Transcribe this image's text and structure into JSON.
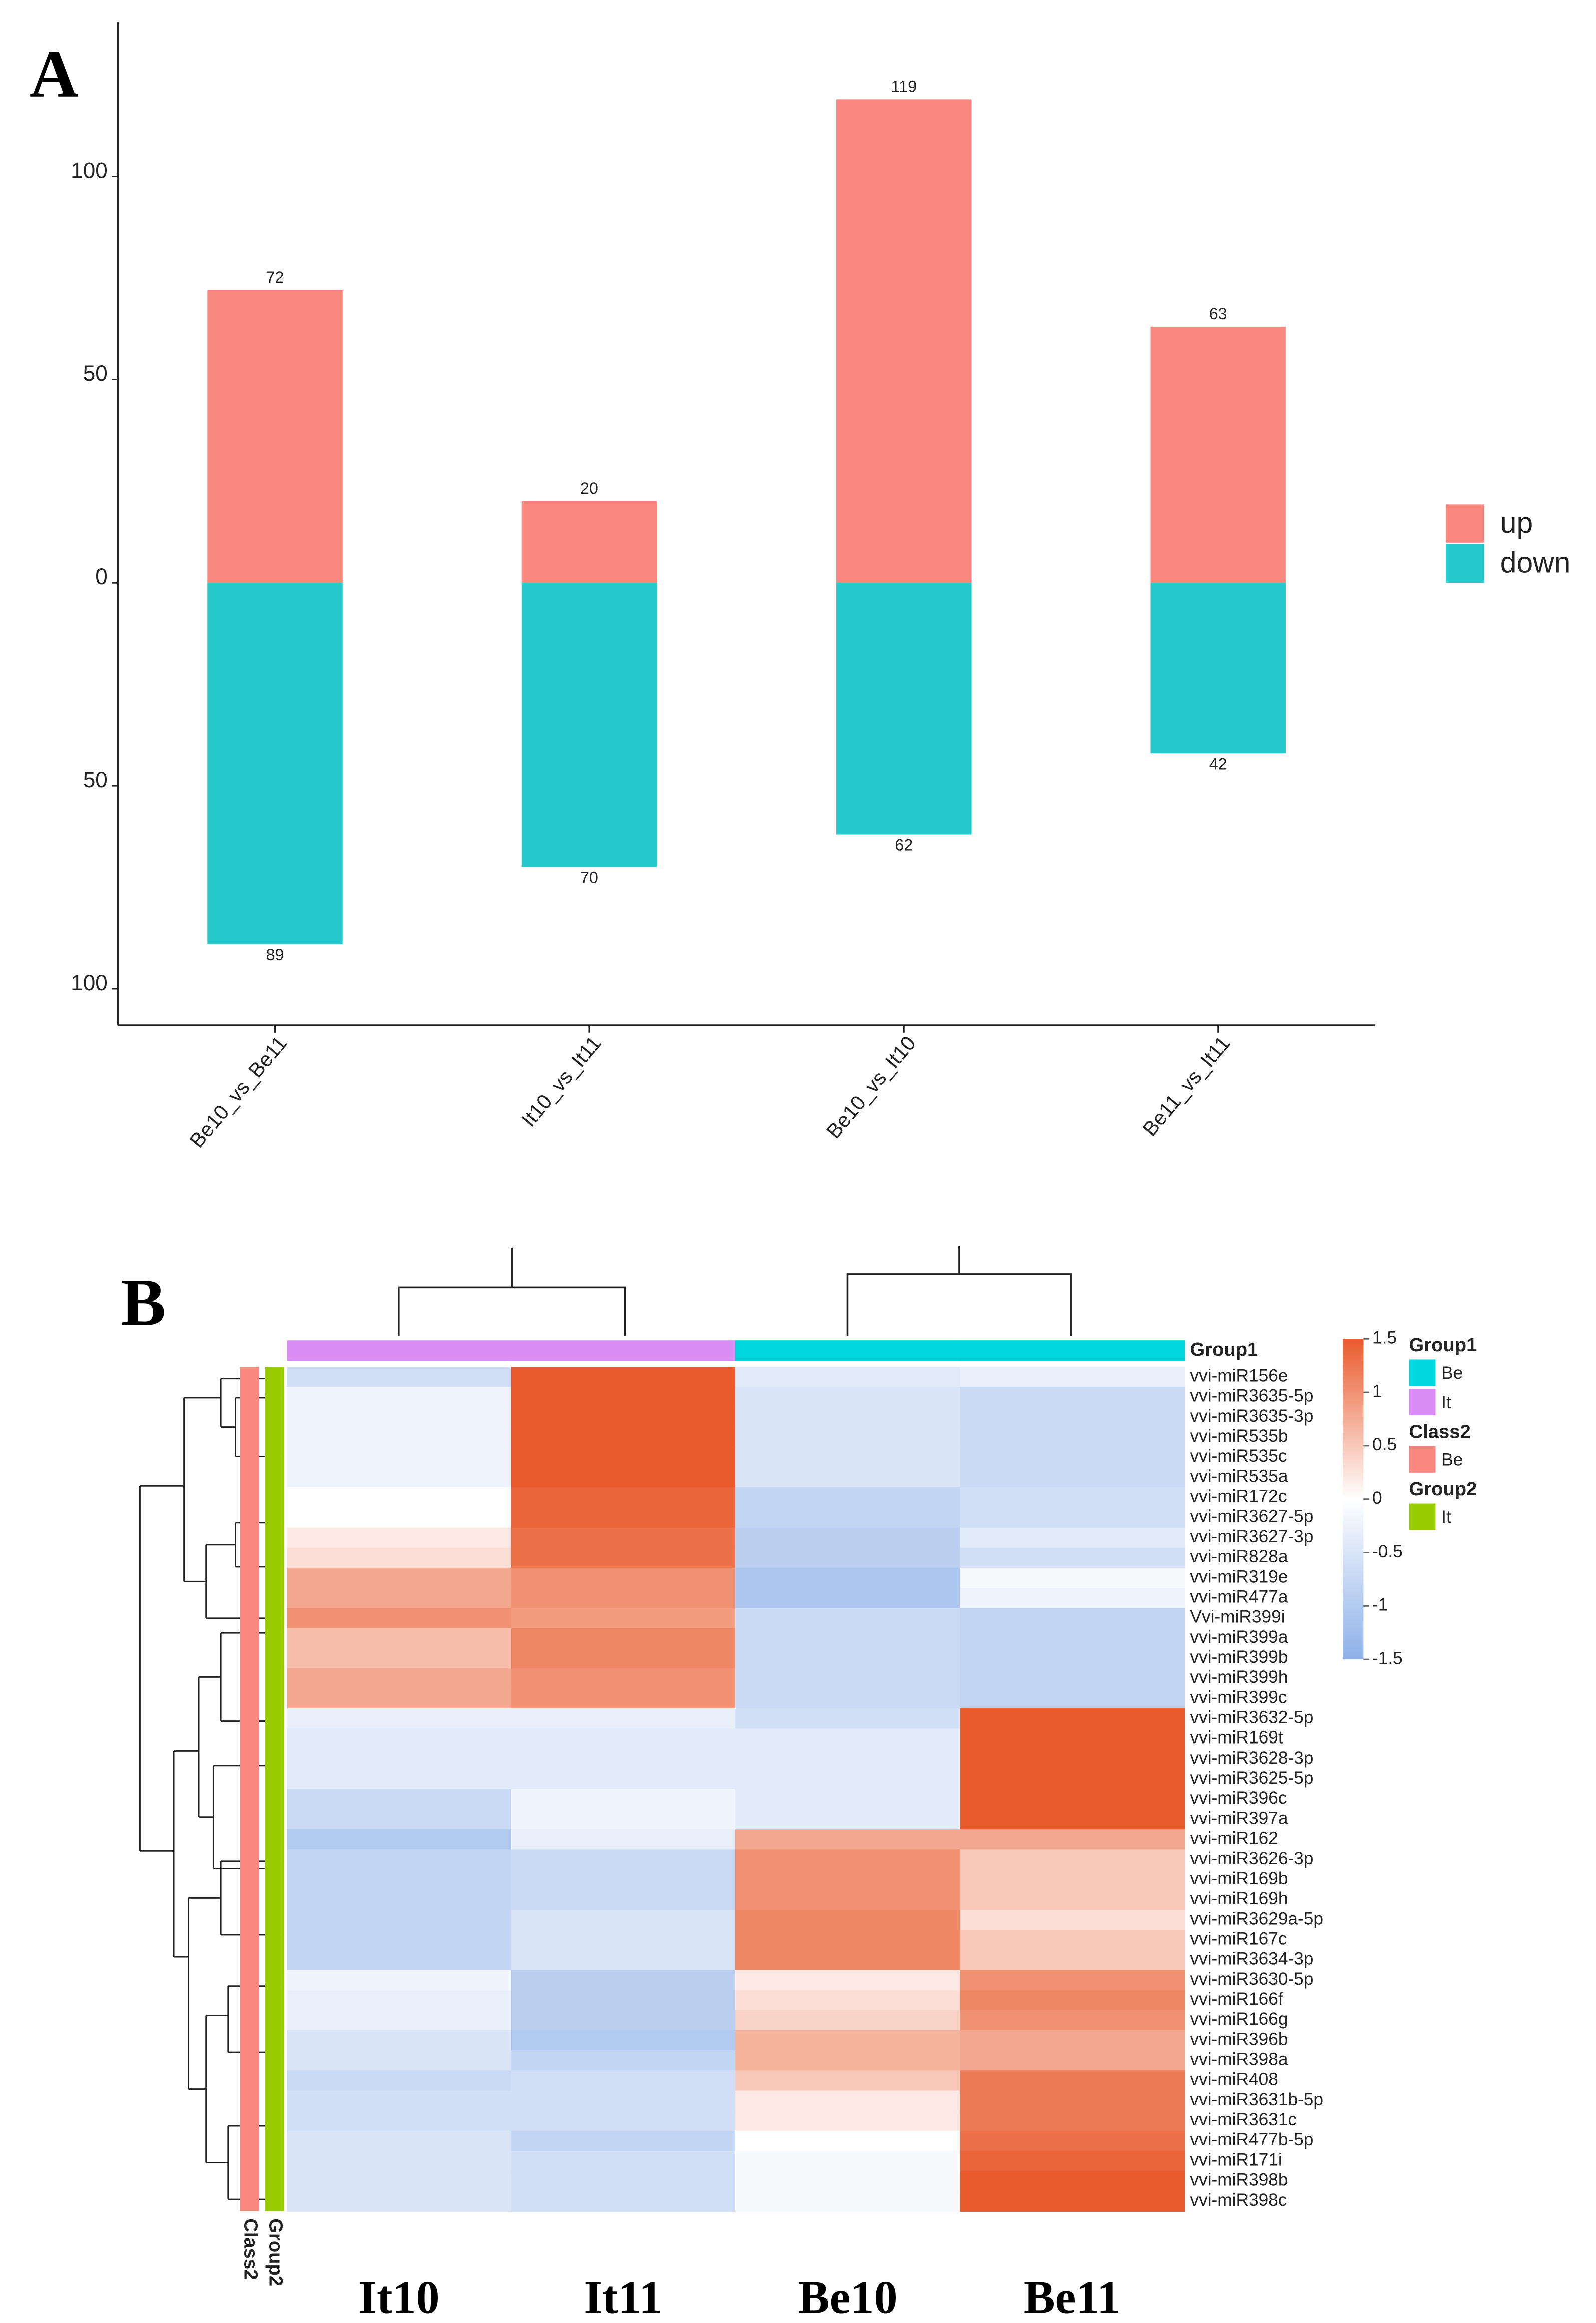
{
  "chart_data": [
    {
      "panel": "A",
      "type": "bar",
      "stacked": true,
      "categories": [
        "Be10_vs_Be11",
        "It10_vs_It11",
        "Be10_vs_It10",
        "Be11_vs_It11"
      ],
      "series": [
        {
          "name": "up",
          "color": "#F8877F",
          "values": [
            72,
            20,
            119,
            63
          ]
        },
        {
          "name": "down",
          "color": "#26C9CC",
          "values": [
            -89,
            -70,
            -62,
            -42
          ],
          "value_labels": [
            "89",
            "70",
            "62",
            "42"
          ]
        }
      ],
      "ylim": [
        -109,
        138
      ],
      "yticks": [
        {
          "value": -100,
          "label": "100"
        },
        {
          "value": -50,
          "label": "50"
        },
        0,
        50,
        100
      ],
      "legend": "right"
    },
    {
      "panel": "B",
      "type": "heatmap",
      "columns": [
        "It10",
        "It11",
        "Be10",
        "Be11"
      ],
      "column_groups": [
        "It",
        "It",
        "Be",
        "Be"
      ],
      "column_annotation": "Group1",
      "rows": [
        "vvi-miR156e",
        "vvi-miR3635-5p",
        "vvi-miR3635-3p",
        "vvi-miR535b",
        "vvi-miR535c",
        "vvi-miR535a",
        "vvi-miR172c",
        "vvi-miR3627-5p",
        "vvi-miR3627-3p",
        "vvi-miR828a",
        "vvi-miR319e",
        "vvi-miR477a",
        "Vvi-miR399i",
        "vvi-miR399a",
        "vvi-miR399b",
        "vvi-miR399h",
        "vvi-miR399c",
        "vvi-miR3632-5p",
        "vvi-miR169t",
        "vvi-miR3628-3p",
        "vvi-miR3625-5p",
        "vvi-miR396c",
        "vvi-miR397a",
        "vvi-miR162",
        "vvi-miR3626-3p",
        "vvi-miR169b",
        "vvi-miR169h",
        "vvi-miR3629a-5p",
        "vvi-miR167c",
        "vvi-miR3634-3p",
        "vvi-miR3630-5p",
        "vvi-miR166f",
        "vvi-miR166g",
        "vvi-miR396b",
        "vvi-miR398a",
        "vvi-miR408",
        "vvi-miR3631b-5p",
        "vvi-miR3631c",
        "vvi-miR477b-5p",
        "vvi-miR171i",
        "vvi-miR398b",
        "vvi-miR398c"
      ],
      "values": [
        [
          -0.6,
          1.5,
          -0.4,
          -0.3
        ],
        [
          -0.2,
          1.5,
          -0.5,
          -0.7
        ],
        [
          -0.2,
          1.5,
          -0.5,
          -0.7
        ],
        [
          -0.2,
          1.5,
          -0.5,
          -0.7
        ],
        [
          -0.2,
          1.5,
          -0.5,
          -0.7
        ],
        [
          -0.2,
          1.5,
          -0.5,
          -0.7
        ],
        [
          0,
          1.4,
          -0.8,
          -0.6
        ],
        [
          0,
          1.4,
          -0.8,
          -0.6
        ],
        [
          0.2,
          1.3,
          -0.9,
          -0.4
        ],
        [
          0.3,
          1.3,
          -0.9,
          -0.6
        ],
        [
          0.8,
          1,
          -1.1,
          -0.1
        ],
        [
          0.8,
          1,
          -1.1,
          -0.2
        ],
        [
          1,
          0.9,
          -0.7,
          -0.8
        ],
        [
          0.6,
          1.1,
          -0.7,
          -0.8
        ],
        [
          0.6,
          1.1,
          -0.7,
          -0.8
        ],
        [
          0.8,
          1,
          -0.7,
          -0.8
        ],
        [
          0.8,
          1,
          -0.7,
          -0.8
        ],
        [
          -0.3,
          -0.3,
          -0.6,
          1.5
        ],
        [
          -0.4,
          -0.4,
          -0.4,
          1.5
        ],
        [
          -0.4,
          -0.4,
          -0.4,
          1.5
        ],
        [
          -0.4,
          -0.4,
          -0.4,
          1.5
        ],
        [
          -0.7,
          -0.2,
          -0.4,
          1.5
        ],
        [
          -0.7,
          -0.2,
          -0.4,
          1.5
        ],
        [
          -1,
          -0.3,
          0.8,
          0.8
        ],
        [
          -0.8,
          -0.7,
          1,
          0.5
        ],
        [
          -0.8,
          -0.7,
          1,
          0.5
        ],
        [
          -0.8,
          -0.7,
          1,
          0.5
        ],
        [
          -0.8,
          -0.5,
          1.1,
          0.3
        ],
        [
          -0.8,
          -0.5,
          1.1,
          0.5
        ],
        [
          -0.8,
          -0.5,
          1.1,
          0.5
        ],
        [
          -0.2,
          -0.9,
          0.2,
          1
        ],
        [
          -0.3,
          -0.9,
          0.3,
          1.1
        ],
        [
          -0.3,
          -0.9,
          0.4,
          1
        ],
        [
          -0.5,
          -1,
          0.7,
          0.8
        ],
        [
          -0.5,
          -0.8,
          0.7,
          0.8
        ],
        [
          -0.7,
          -0.6,
          0.5,
          1.2
        ],
        [
          -0.6,
          -0.6,
          0.2,
          1.2
        ],
        [
          -0.6,
          -0.6,
          0.2,
          1.2
        ],
        [
          -0.5,
          -0.8,
          0,
          1.3
        ],
        [
          -0.5,
          -0.6,
          -0.1,
          1.4
        ],
        [
          -0.5,
          -0.6,
          -0.1,
          1.5
        ],
        [
          -0.5,
          -0.6,
          -0.1,
          1.5
        ]
      ],
      "zlim": [
        -1.5,
        1.5
      ],
      "colors": [
        "#8DB0E8",
        "#FFFFFF",
        "#E95A2C"
      ],
      "colorbar_ticks": [
        1.5,
        1,
        0.5,
        0,
        -0.5,
        -1,
        -1.5
      ],
      "row_annotations": [
        {
          "name": "Class2",
          "value": "Be"
        },
        {
          "name": "Group2",
          "value": "It"
        }
      ],
      "annotation_legend": [
        {
          "title": "Group1",
          "items": [
            {
              "label": "Be",
              "color": "#00D8E0"
            },
            {
              "label": "It",
              "color": "#DA8CF5"
            }
          ]
        },
        {
          "title": "Class2",
          "items": [
            {
              "label": "Be",
              "color": "#F8877F"
            }
          ]
        },
        {
          "title": "Group2",
          "items": [
            {
              "label": "It",
              "color": "#99CC00"
            }
          ]
        }
      ]
    }
  ]
}
